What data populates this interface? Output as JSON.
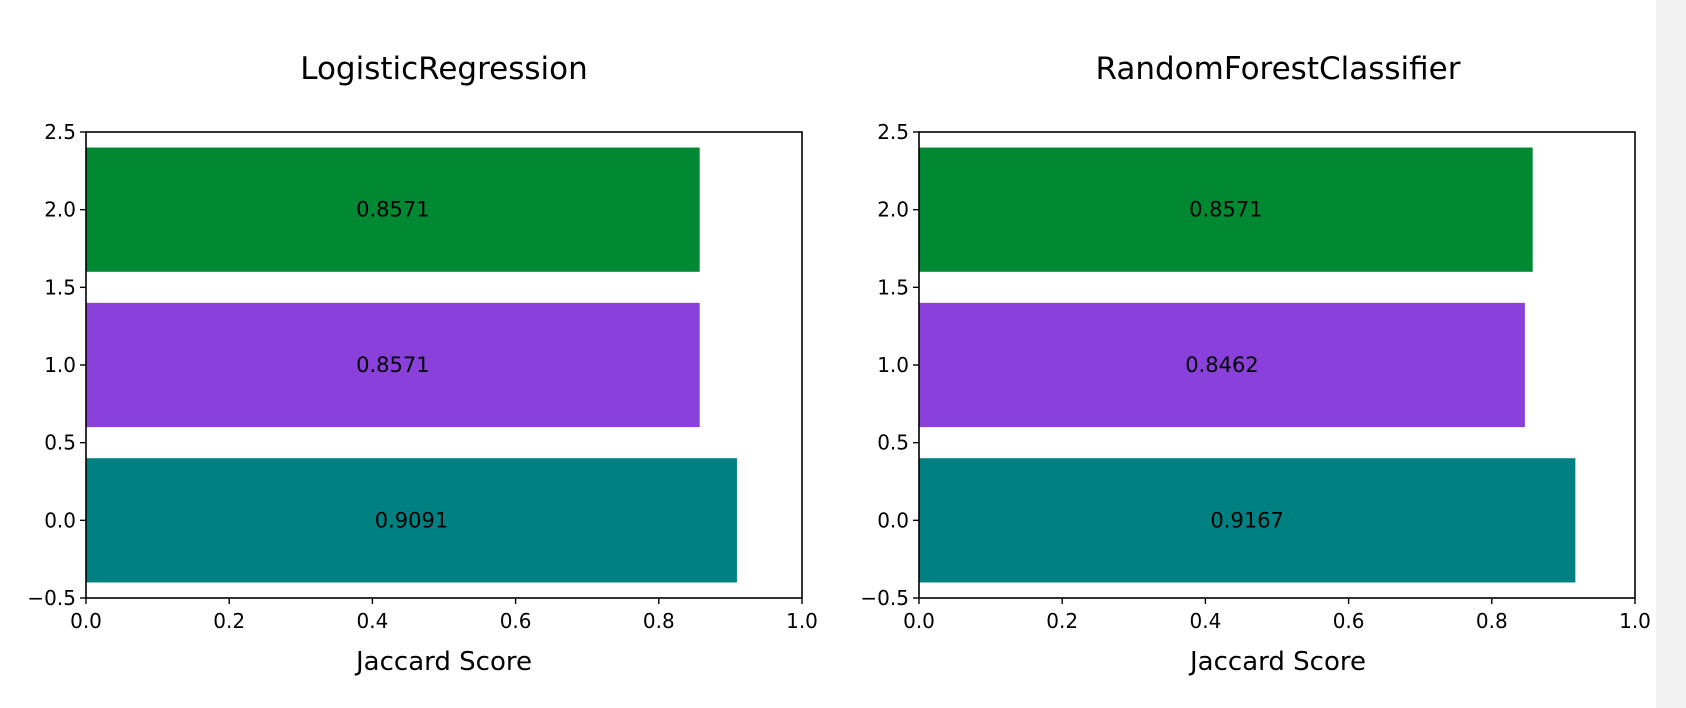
{
  "colors": {
    "class0": "#008080",
    "class1": "#8a41dc",
    "class2": "#008833",
    "axes": "#000000",
    "background": "#ffffff"
  },
  "chart_data": [
    {
      "type": "bar",
      "orientation": "horizontal",
      "title": "LogisticRegression",
      "xlabel": "Jaccard Score",
      "ylabel": "",
      "categories": [
        0,
        1,
        2
      ],
      "values": [
        0.9091,
        0.8571,
        0.8571
      ],
      "data_labels": [
        "0.9091",
        "0.8571",
        "0.8571"
      ],
      "bar_colors": [
        "#008080",
        "#8a41dc",
        "#008833"
      ],
      "xlim": [
        0.0,
        1.0
      ],
      "ylim": [
        -0.5,
        2.5
      ],
      "xticks": [
        "0.0",
        "0.2",
        "0.4",
        "0.6",
        "0.8",
        "1.0"
      ],
      "yticks": [
        "−0.5",
        "0.0",
        "0.5",
        "1.0",
        "1.5",
        "2.0",
        "2.5"
      ],
      "grid": false,
      "legend": "none"
    },
    {
      "type": "bar",
      "orientation": "horizontal",
      "title": "RandomForestClassifier",
      "xlabel": "Jaccard Score",
      "ylabel": "",
      "categories": [
        0,
        1,
        2
      ],
      "values": [
        0.9167,
        0.8462,
        0.8571
      ],
      "data_labels": [
        "0.9167",
        "0.8462",
        "0.8571"
      ],
      "bar_colors": [
        "#008080",
        "#8a41dc",
        "#008833"
      ],
      "xlim": [
        0.0,
        1.0
      ],
      "ylim": [
        -0.5,
        2.5
      ],
      "xticks": [
        "0.0",
        "0.2",
        "0.4",
        "0.6",
        "0.8",
        "1.0"
      ],
      "yticks": [
        "−0.5",
        "0.0",
        "0.5",
        "1.0",
        "1.5",
        "2.0",
        "2.5"
      ],
      "grid": false,
      "legend": "none"
    }
  ]
}
